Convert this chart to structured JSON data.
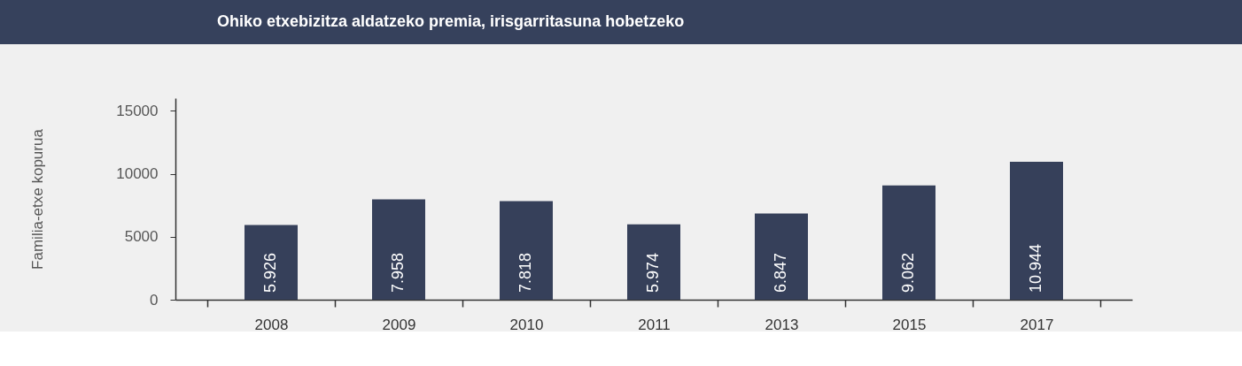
{
  "chart_data": {
    "type": "bar",
    "title": "Ohiko etxebizitza aldatzeko premia, irisgarritasuna hobetzeko",
    "ylabel": "Familia-etxe kopurua",
    "categories": [
      "2008",
      "2009",
      "2010",
      "2011",
      "2013",
      "2015",
      "2017"
    ],
    "values": [
      5926,
      7958,
      7818,
      5974,
      6847,
      9062,
      10944
    ],
    "value_labels": [
      "5.926",
      "7.958",
      "7.818",
      "5.974",
      "6.847",
      "9.062",
      "10.944"
    ],
    "color": "#36405a",
    "ylim": [
      0,
      16000
    ],
    "yticks": [
      0,
      5000,
      10000,
      15000
    ],
    "grid": false,
    "legend": false
  }
}
